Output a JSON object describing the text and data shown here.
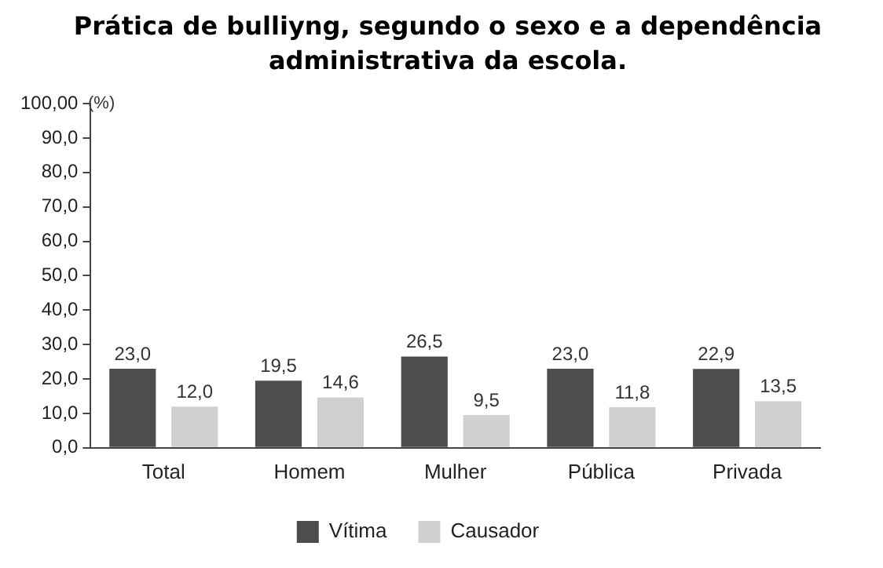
{
  "chart_data": {
    "type": "bar",
    "title": "Prática de bulliyng, segundo o sexo e a dependência administrativa da escola.",
    "ylabel": "(%)",
    "categories": [
      "Total",
      "Homem",
      "Mulher",
      "Pública",
      "Privada"
    ],
    "series": [
      {
        "name": "Vítima",
        "color": "#4d4d4d",
        "values": [
          23.0,
          19.5,
          26.5,
          23.0,
          22.9
        ],
        "value_labels": [
          "23,0",
          "19,5",
          "26,5",
          "23,0",
          "22,9"
        ]
      },
      {
        "name": "Causador",
        "color": "#d0d0d0",
        "values": [
          12.0,
          14.6,
          9.5,
          11.8,
          13.5
        ],
        "value_labels": [
          "12,0",
          "14,6",
          "9,5",
          "11,8",
          "13,5"
        ]
      }
    ],
    "ylim": [
      0,
      100
    ],
    "yticks": [
      {
        "value": 0,
        "label": "0,0"
      },
      {
        "value": 10,
        "label": "10,0"
      },
      {
        "value": 20,
        "label": "20,0"
      },
      {
        "value": 30,
        "label": "30,0"
      },
      {
        "value": 40,
        "label": "40,0"
      },
      {
        "value": 50,
        "label": "50,0"
      },
      {
        "value": 60,
        "label": "60,0"
      },
      {
        "value": 70,
        "label": "70,0"
      },
      {
        "value": 80,
        "label": "80,0"
      },
      {
        "value": 90,
        "label": "90,0"
      },
      {
        "value": 100,
        "label": "100,00"
      }
    ],
    "grid": false,
    "legend": "bottom"
  }
}
